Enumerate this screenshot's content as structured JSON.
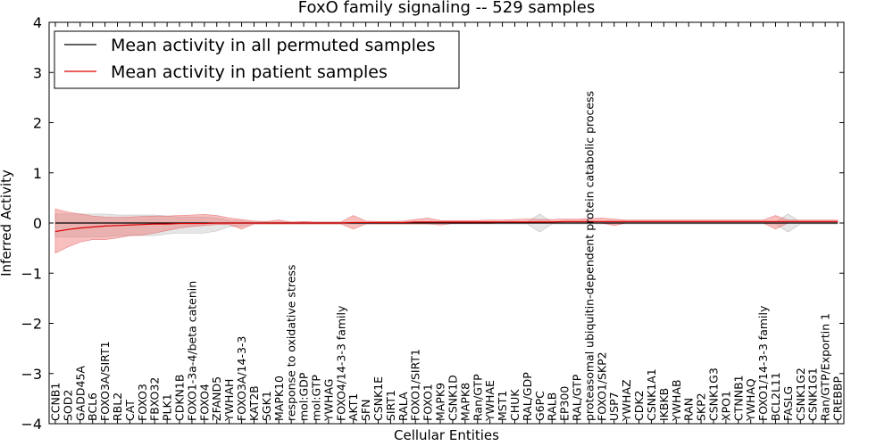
{
  "chart_data": {
    "type": "line",
    "title": "FoxO family signaling -- 529 samples",
    "xlabel": "Cellular Entities",
    "ylabel": "Inferred Activity",
    "ylim": [
      -4,
      4
    ],
    "yticks": [
      "−4",
      "−3",
      "−2",
      "−1",
      "0",
      "1",
      "2",
      "3",
      "4"
    ],
    "categories": [
      "CCNB1",
      "SOD2",
      "GADD45A",
      "BCL6",
      "FOXO3A/SIRT1",
      "RBL2",
      "CAT",
      "FOXO3",
      "FBXO32",
      "PLK1",
      "CDKN1B",
      "FOXO1-3a-4/beta catenin",
      "FOXO4",
      "ZFAND5",
      "YWHAH",
      "FOXO3A/14-3-3",
      "KAT2B",
      "SGK1",
      "MAPK10",
      "response to oxidative stress",
      "mol:GDP",
      "mol:GTP",
      "YWHAG",
      "FOXO4/14-3-3 family",
      "AKT1",
      "SFN",
      "CSNK1E",
      "SIRT1",
      "RALA",
      "FOXO1/SIRT1",
      "FOXO1",
      "MAPK9",
      "CSNK1D",
      "MAPK8",
      "Ran/GTP",
      "YWHAE",
      "MST1",
      "CHUK",
      "RAL/GDP",
      "G6PC",
      "RALB",
      "EP300",
      "RAL/GTP",
      "proteasomal ubiquitin-dependent protein catabolic process",
      "FOXO1/SKP2",
      "USP7",
      "YWHAZ",
      "CDK2",
      "CSNK1A1",
      "IKBKB",
      "YWHAB",
      "RAN",
      "SKP2",
      "CSNK1G3",
      "XPO1",
      "CTNNB1",
      "YWHAQ",
      "FOXO1/14-3-3 family",
      "BCL2L11",
      "FASLG",
      "CSNK1G2",
      "CSNK1G1",
      "Ran/GTP/Exportin 1",
      "CREBBP"
    ],
    "series": [
      {
        "name": "Mean activity in all permuted samples",
        "color": "#000000",
        "values": [
          0.0,
          0.0,
          0.0,
          0.0,
          0.0,
          0.0,
          0.0,
          0.0,
          0.0,
          0.0,
          0.0,
          0.0,
          0.0,
          0.0,
          0.0,
          0.0,
          0.0,
          0.0,
          0.0,
          0.0,
          0.0,
          0.0,
          0.0,
          0.0,
          0.0,
          0.0,
          0.0,
          0.0,
          0.0,
          0.0,
          0.0,
          0.0,
          0.0,
          0.0,
          0.0,
          0.0,
          0.0,
          0.0,
          0.0,
          0.0,
          0.0,
          0.0,
          0.0,
          0.0,
          0.0,
          0.0,
          0.0,
          0.0,
          0.0,
          0.0,
          0.0,
          0.0,
          0.0,
          0.0,
          0.0,
          0.0,
          0.0,
          0.0,
          0.0,
          0.0,
          0.0,
          0.0,
          0.0,
          0.0
        ],
        "band_low": [
          -0.28,
          -0.28,
          -0.28,
          -0.28,
          -0.28,
          -0.25,
          -0.25,
          -0.25,
          -0.25,
          -0.22,
          -0.2,
          -0.2,
          -0.2,
          -0.16,
          -0.07,
          -0.06,
          -0.02,
          -0.02,
          -0.02,
          -0.02,
          -0.02,
          -0.02,
          -0.02,
          -0.02,
          -0.02,
          -0.02,
          -0.02,
          -0.02,
          -0.02,
          -0.02,
          -0.02,
          -0.02,
          -0.02,
          -0.02,
          -0.02,
          -0.02,
          -0.02,
          -0.02,
          -0.02,
          -0.18,
          -0.02,
          -0.02,
          -0.02,
          -0.02,
          -0.02,
          -0.02,
          -0.02,
          -0.02,
          -0.02,
          -0.02,
          -0.02,
          -0.02,
          -0.02,
          -0.02,
          -0.02,
          -0.02,
          -0.02,
          -0.02,
          -0.02,
          -0.18,
          -0.02,
          -0.02,
          -0.02,
          -0.02
        ],
        "band_high": [
          0.18,
          0.18,
          0.18,
          0.18,
          0.18,
          0.16,
          0.16,
          0.16,
          0.16,
          0.14,
          0.12,
          0.12,
          0.12,
          0.1,
          0.05,
          0.04,
          0.02,
          0.02,
          0.02,
          0.02,
          0.02,
          0.02,
          0.02,
          0.02,
          0.02,
          0.02,
          0.02,
          0.02,
          0.02,
          0.02,
          0.02,
          0.02,
          0.02,
          0.02,
          0.02,
          0.02,
          0.02,
          0.02,
          0.02,
          0.18,
          0.02,
          0.02,
          0.02,
          0.02,
          0.02,
          0.02,
          0.02,
          0.02,
          0.02,
          0.02,
          0.02,
          0.02,
          0.02,
          0.02,
          0.02,
          0.02,
          0.02,
          0.02,
          0.02,
          0.18,
          0.02,
          0.02,
          0.02,
          0.02
        ]
      },
      {
        "name": "Mean activity in patient samples",
        "color": "#dd0000",
        "values": [
          -0.17,
          -0.13,
          -0.1,
          -0.08,
          -0.06,
          -0.05,
          -0.04,
          -0.03,
          -0.02,
          -0.02,
          -0.01,
          -0.01,
          -0.01,
          0.0,
          0.0,
          0.0,
          0.0,
          0.0,
          0.0,
          0.0,
          0.0,
          0.0,
          0.0,
          0.0,
          0.01,
          0.01,
          0.01,
          0.01,
          0.01,
          0.02,
          0.02,
          0.02,
          0.02,
          0.02,
          0.02,
          0.02,
          0.02,
          0.02,
          0.02,
          0.02,
          0.02,
          0.03,
          0.03,
          0.03,
          0.03,
          0.03,
          0.03,
          0.03,
          0.03,
          0.03,
          0.03,
          0.03,
          0.03,
          0.03,
          0.03,
          0.03,
          0.03,
          0.03,
          0.03,
          0.03,
          0.03,
          0.03,
          0.03,
          0.03
        ],
        "band_low": [
          -0.6,
          -0.48,
          -0.38,
          -0.33,
          -0.33,
          -0.3,
          -0.25,
          -0.24,
          -0.2,
          -0.15,
          -0.1,
          -0.07,
          -0.05,
          -0.03,
          -0.03,
          -0.12,
          -0.02,
          -0.02,
          -0.02,
          -0.02,
          -0.02,
          -0.02,
          -0.02,
          -0.02,
          -0.12,
          -0.02,
          -0.02,
          -0.02,
          -0.02,
          -0.02,
          -0.02,
          -0.04,
          -0.01,
          -0.01,
          -0.01,
          -0.01,
          0.0,
          0.0,
          0.0,
          0.0,
          0.0,
          0.0,
          0.0,
          0.0,
          0.0,
          -0.05,
          0.0,
          0.0,
          0.0,
          0.0,
          0.0,
          0.0,
          0.0,
          0.0,
          0.0,
          0.0,
          0.0,
          0.0,
          -0.12,
          0.0,
          0.0,
          0.0,
          0.0,
          0.0
        ],
        "band_high": [
          0.28,
          0.22,
          0.18,
          0.14,
          0.12,
          0.11,
          0.12,
          0.13,
          0.14,
          0.14,
          0.15,
          0.16,
          0.17,
          0.15,
          0.1,
          0.07,
          0.04,
          0.03,
          0.06,
          0.02,
          0.03,
          0.02,
          0.02,
          0.02,
          0.15,
          0.04,
          0.03,
          0.03,
          0.04,
          0.07,
          0.1,
          0.05,
          0.05,
          0.05,
          0.05,
          0.06,
          0.06,
          0.07,
          0.08,
          0.07,
          0.07,
          0.08,
          0.08,
          0.09,
          0.1,
          0.08,
          0.06,
          0.06,
          0.06,
          0.06,
          0.06,
          0.06,
          0.06,
          0.06,
          0.06,
          0.06,
          0.06,
          0.06,
          0.15,
          0.06,
          0.06,
          0.06,
          0.06,
          0.06
        ]
      }
    ],
    "legend_position": "top-left",
    "grid": false
  }
}
